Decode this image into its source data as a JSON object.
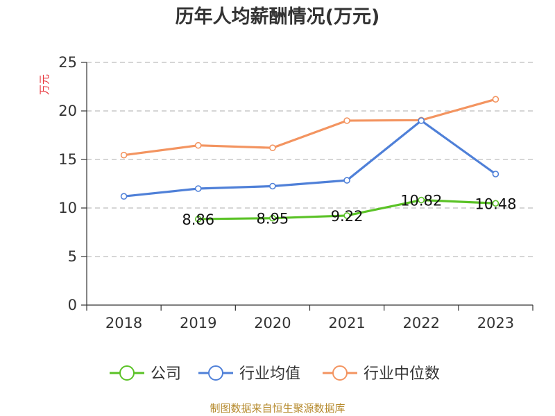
{
  "chart_data": {
    "type": "line",
    "title": "历年人均薪酬情况(万元)",
    "ylabel": "万元",
    "xlabel": "",
    "categories": [
      "2018",
      "2019",
      "2020",
      "2021",
      "2022",
      "2023"
    ],
    "ylim": [
      0,
      25
    ],
    "yticks": [
      0,
      5,
      10,
      15,
      20,
      25
    ],
    "grid": true,
    "legend_position": "bottom",
    "series": [
      {
        "name": "公司",
        "color": "#5ac226",
        "values": [
          null,
          8.86,
          8.95,
          9.22,
          10.82,
          10.48
        ],
        "labels": [
          "",
          "8.86",
          "8.95",
          "9.22",
          "10.82",
          "10.48"
        ]
      },
      {
        "name": "行业均值",
        "color": "#4f80d8",
        "values": [
          11.2,
          12.0,
          12.25,
          12.85,
          19.0,
          13.5
        ],
        "labels": [
          "",
          "",
          "",
          "",
          "",
          ""
        ]
      },
      {
        "name": "行业中位数",
        "color": "#f39460",
        "values": [
          15.45,
          16.45,
          16.2,
          19.0,
          19.05,
          21.2
        ],
        "labels": [
          "",
          "",
          "",
          "",
          "",
          ""
        ]
      }
    ]
  },
  "source": "制图数据来自恒生聚源数据库"
}
